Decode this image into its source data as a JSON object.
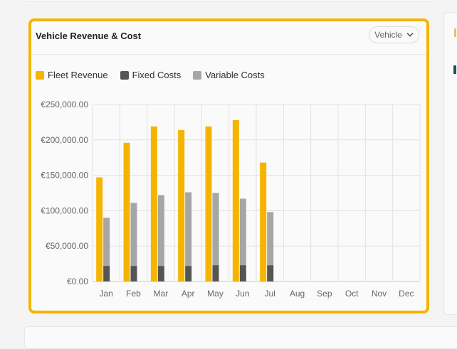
{
  "panel": {
    "title": "Vehicle Revenue & Cost",
    "dropdown": {
      "selected": "Vehicle",
      "icon": "chevron-down-icon"
    }
  },
  "colors": {
    "accent_border": "#f5b400",
    "fleet_revenue": "#f5b400",
    "fixed_costs": "#555555",
    "variable_costs": "#a6a6a6"
  },
  "legend": [
    {
      "label": "Fleet Revenue",
      "color": "#f5b400"
    },
    {
      "label": "Fixed Costs",
      "color": "#555555"
    },
    {
      "label": "Variable Costs",
      "color": "#a6a6a6"
    }
  ],
  "chart_data": {
    "type": "bar",
    "categories": [
      "Jan",
      "Feb",
      "Mar",
      "Apr",
      "May",
      "Jun",
      "Jul",
      "Aug",
      "Sep",
      "Oct",
      "Nov",
      "Dec"
    ],
    "series": [
      {
        "name": "Fleet Revenue",
        "values": [
          147000,
          196000,
          219000,
          214000,
          219000,
          228000,
          168000,
          null,
          null,
          null,
          null,
          null
        ]
      },
      {
        "name": "Fixed Costs",
        "values": [
          22000,
          22000,
          22000,
          22000,
          23000,
          23000,
          23000,
          null,
          null,
          null,
          null,
          null
        ]
      },
      {
        "name": "Variable Costs",
        "values": [
          68000,
          89000,
          100000,
          104000,
          102000,
          94000,
          75000,
          null,
          null,
          null,
          null,
          null
        ]
      }
    ],
    "stacked_series": [
      "Fixed Costs",
      "Variable Costs"
    ],
    "ylim": [
      0,
      250000
    ],
    "yticks": [
      0,
      50000,
      100000,
      150000,
      200000,
      250000
    ],
    "ytick_labels": [
      "€0.00",
      "€50,000.00",
      "€100,000.00",
      "€150,000.00",
      "€200,000.00",
      "€250,000.00"
    ],
    "grid": true,
    "legend_position": "top-left"
  }
}
